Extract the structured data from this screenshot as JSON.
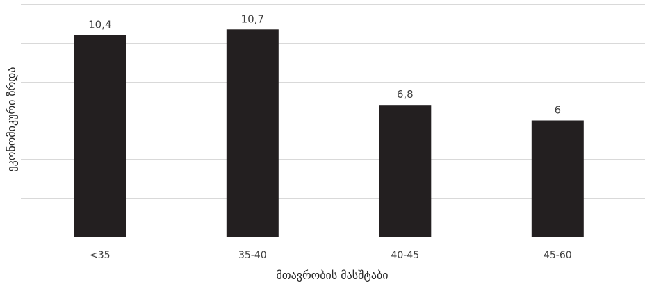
{
  "chart_data": {
    "type": "bar",
    "title": "",
    "xlabel": "მთავრობის მასშტაბი",
    "ylabel": "ეკონომიკური ზრდა",
    "categories": [
      "<35",
      "35-40",
      "40-45",
      "45-60"
    ],
    "values": [
      10.4,
      10.7,
      6.8,
      6
    ],
    "value_labels": [
      "10,4",
      "10,7",
      "6,8",
      "6"
    ],
    "ylim": [
      0,
      12
    ],
    "y_gridlines": [
      0,
      2,
      4,
      6,
      8,
      10,
      12
    ],
    "y_tick_labels_shown": false,
    "grid": true,
    "legend": "none",
    "colors": {
      "bar": "#231f20",
      "grid": "#d9d9d9",
      "text": "#404040"
    }
  }
}
